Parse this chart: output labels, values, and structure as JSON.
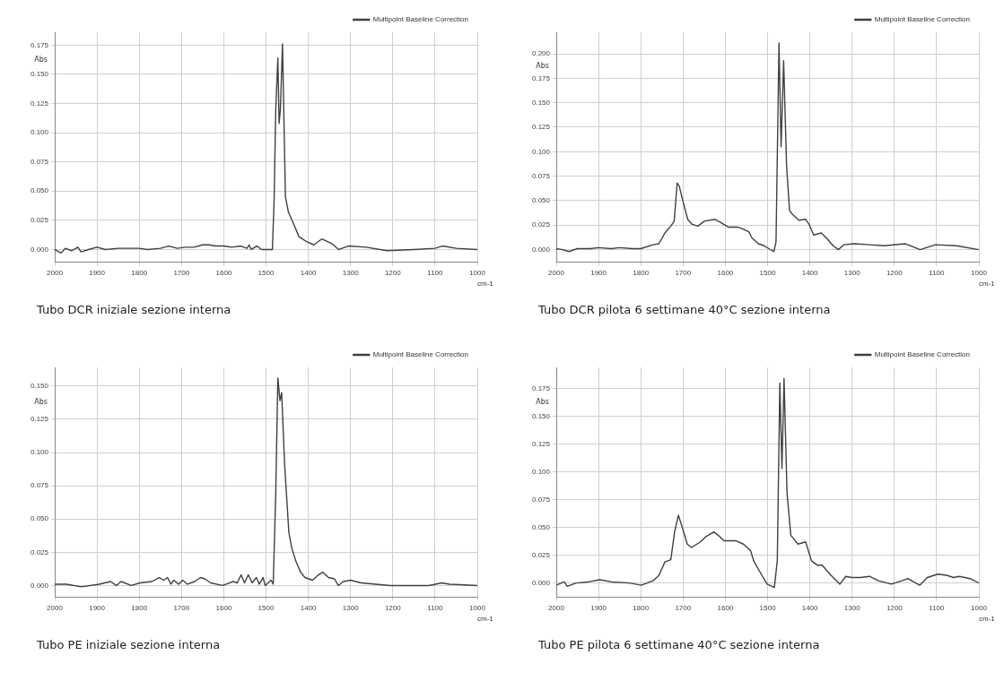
{
  "chart_data": [
    {
      "type": "line",
      "title": "Tubo DCR iniziale sezione interna",
      "xlabel": "cm-1",
      "ylabel": "Abs",
      "grid": true,
      "legend": "top right",
      "marker": "none",
      "line_style": "solid",
      "xlim": [
        2000,
        1000
      ],
      "xticks": [
        2000,
        1900,
        1800,
        1700,
        1600,
        1500,
        1400,
        1300,
        1200,
        1100,
        1000
      ],
      "ylim": [
        -0.011,
        0.186
      ],
      "yticks": [
        {
          "value": 0,
          "label": "0.000"
        },
        {
          "value": 0.025,
          "label": "0.025"
        },
        {
          "value": 0.05,
          "label": "0.050"
        },
        {
          "value": 0.075,
          "label": "0.075"
        },
        {
          "value": 0.1,
          "label": "0.100"
        },
        {
          "value": 0.125,
          "label": "0.125"
        },
        {
          "value": 0.15,
          "label": "0.150"
        },
        {
          "value": 0.175,
          "label": "0.175"
        }
      ],
      "x": [
        2000,
        1985,
        1975,
        1960,
        1945,
        1938,
        1920,
        1900,
        1880,
        1850,
        1800,
        1780,
        1750,
        1730,
        1710,
        1690,
        1670,
        1650,
        1635,
        1620,
        1600,
        1580,
        1560,
        1545,
        1540,
        1535,
        1522,
        1510,
        1500,
        1485,
        1481,
        1477,
        1472,
        1469,
        1466,
        1461,
        1457,
        1454,
        1447,
        1436,
        1422,
        1405,
        1387,
        1368,
        1344,
        1328,
        1305,
        1263,
        1214,
        1150,
        1100,
        1083,
        1050,
        1000
      ],
      "series": [
        {
          "name": "Multipoint Baseline Correction",
          "color": "#404040",
          "values": [
            0.0,
            -0.003,
            0.001,
            -0.001,
            0.002,
            -0.002,
            0.0,
            0.002,
            0.0,
            0.001,
            0.001,
            0.0,
            0.001,
            0.003,
            0.001,
            0.002,
            0.002,
            0.004,
            0.004,
            0.003,
            0.003,
            0.002,
            0.003,
            0.001,
            0.004,
            0.0,
            0.003,
            0.0,
            0.0,
            0.0,
            0.04,
            0.12,
            0.164,
            0.108,
            0.12,
            0.176,
            0.1,
            0.045,
            0.032,
            0.023,
            0.011,
            0.007,
            0.004,
            0.009,
            0.005,
            0.0,
            0.003,
            0.002,
            -0.001,
            0.0,
            0.001,
            0.003,
            0.001,
            0.0
          ]
        }
      ]
    },
    {
      "type": "line",
      "title": "Tubo DCR pilota 6 settimane 40°C sezione interna",
      "xlabel": "cm-1",
      "ylabel": "Abs",
      "grid": true,
      "legend": "top right",
      "marker": "none",
      "line_style": "solid",
      "xlim": [
        2000,
        1000
      ],
      "xticks": [
        2000,
        1900,
        1800,
        1700,
        1600,
        1500,
        1400,
        1300,
        1200,
        1100,
        1000
      ],
      "ylim": [
        -0.013,
        0.222
      ],
      "yticks": [
        {
          "value": 0,
          "label": "0.000"
        },
        {
          "value": 0.025,
          "label": "0.025"
        },
        {
          "value": 0.05,
          "label": "0.050"
        },
        {
          "value": 0.075,
          "label": "0.075"
        },
        {
          "value": 0.1,
          "label": "0.100"
        },
        {
          "value": 0.125,
          "label": "0.125"
        },
        {
          "value": 0.15,
          "label": "0.150"
        },
        {
          "value": 0.175,
          "label": "0.175"
        },
        {
          "value": 0.2,
          "label": "0.200"
        }
      ],
      "x": [
        2000,
        1985,
        1970,
        1950,
        1920,
        1900,
        1870,
        1850,
        1820,
        1800,
        1771,
        1757,
        1743,
        1729,
        1721,
        1714,
        1709,
        1700,
        1689,
        1679,
        1665,
        1650,
        1625,
        1608,
        1593,
        1571,
        1558,
        1544,
        1537,
        1522,
        1508,
        1497,
        1485,
        1480,
        1473,
        1468,
        1462,
        1455,
        1448,
        1441,
        1426,
        1410,
        1402,
        1391,
        1373,
        1359,
        1345,
        1332,
        1320,
        1295,
        1259,
        1224,
        1174,
        1139,
        1103,
        1053,
        1000
      ],
      "series": [
        {
          "name": "Multipoint Baseline Correction",
          "color": "#404040",
          "values": [
            0.001,
            0.0,
            -0.002,
            0.001,
            0.001,
            0.002,
            0.001,
            0.002,
            0.001,
            0.001,
            0.005,
            0.006,
            0.017,
            0.024,
            0.029,
            0.068,
            0.065,
            0.049,
            0.031,
            0.026,
            0.024,
            0.029,
            0.031,
            0.027,
            0.023,
            0.023,
            0.021,
            0.018,
            0.012,
            0.006,
            0.004,
            0.001,
            -0.002,
            0.008,
            0.211,
            0.105,
            0.193,
            0.085,
            0.04,
            0.036,
            0.03,
            0.031,
            0.026,
            0.015,
            0.017,
            0.011,
            0.004,
            0.0,
            0.005,
            0.006,
            0.005,
            0.004,
            0.006,
            0.0,
            0.005,
            0.004,
            0.0
          ]
        }
      ]
    },
    {
      "type": "line",
      "title": "Tubo PE iniziale sezione interna",
      "xlabel": "cm-1",
      "ylabel": "Abs",
      "grid": true,
      "legend": "top right",
      "marker": "none",
      "line_style": "solid",
      "xlim": [
        2000,
        1000
      ],
      "xticks": [
        2000,
        1900,
        1800,
        1700,
        1600,
        1500,
        1400,
        1300,
        1200,
        1100,
        1000
      ],
      "ylim": [
        -0.009,
        0.164
      ],
      "yticks": [
        {
          "value": 0,
          "label": "0.000"
        },
        {
          "value": 0.025,
          "label": "0.025"
        },
        {
          "value": 0.05,
          "label": "0.050"
        },
        {
          "value": 0.075,
          "label": "0.075"
        },
        {
          "value": 0.1,
          "label": "0.100"
        },
        {
          "value": 0.125,
          "label": "0.125"
        },
        {
          "value": 0.15,
          "label": "0.150"
        }
      ],
      "x": [
        2000,
        1972,
        1937,
        1895,
        1868,
        1854,
        1843,
        1819,
        1798,
        1770,
        1753,
        1742,
        1733,
        1725,
        1718,
        1707,
        1697,
        1686,
        1669,
        1655,
        1645,
        1631,
        1603,
        1578,
        1568,
        1559,
        1551,
        1542,
        1533,
        1523,
        1516,
        1507,
        1502,
        1488,
        1483,
        1477,
        1472,
        1467,
        1463,
        1456,
        1446,
        1439,
        1429,
        1418,
        1408,
        1390,
        1376,
        1366,
        1352,
        1338,
        1329,
        1317,
        1300,
        1275,
        1206,
        1115,
        1084,
        1066,
        1000
      ],
      "series": [
        {
          "name": "Multipoint Baseline Correction",
          "color": "#404040",
          "values": [
            0.001,
            0.001,
            -0.001,
            0.001,
            0.003,
            0.0,
            0.003,
            0.0,
            0.002,
            0.003,
            0.006,
            0.004,
            0.006,
            0.001,
            0.004,
            0.001,
            0.004,
            0.001,
            0.003,
            0.006,
            0.005,
            0.002,
            0.0,
            0.003,
            0.002,
            0.008,
            0.002,
            0.008,
            0.002,
            0.006,
            0.001,
            0.006,
            0.0,
            0.004,
            0.001,
            0.069,
            0.156,
            0.139,
            0.145,
            0.091,
            0.04,
            0.028,
            0.018,
            0.01,
            0.006,
            0.004,
            0.008,
            0.01,
            0.006,
            0.005,
            0.0,
            0.003,
            0.004,
            0.002,
            0.0,
            0.0,
            0.002,
            0.001,
            0.0
          ]
        }
      ]
    },
    {
      "type": "line",
      "title": "Tubo PE pilota 6 settimane 40°C sezione interna",
      "xlabel": "cm-1",
      "ylabel": "Abs",
      "grid": true,
      "legend": "top right",
      "marker": "none",
      "line_style": "solid",
      "xlim": [
        2000,
        1000
      ],
      "xticks": [
        2000,
        1900,
        1800,
        1700,
        1600,
        1500,
        1400,
        1300,
        1200,
        1100,
        1000
      ],
      "ylim": [
        -0.013,
        0.194
      ],
      "yticks": [
        {
          "value": 0,
          "label": "0.000"
        },
        {
          "value": 0.025,
          "label": "0.025"
        },
        {
          "value": 0.05,
          "label": "0.050"
        },
        {
          "value": 0.075,
          "label": "0.075"
        },
        {
          "value": 0.1,
          "label": "0.100"
        },
        {
          "value": 0.125,
          "label": "0.125"
        },
        {
          "value": 0.15,
          "label": "0.150"
        },
        {
          "value": 0.175,
          "label": "0.175"
        }
      ],
      "x": [
        2000,
        1988,
        1981,
        1974,
        1953,
        1925,
        1897,
        1869,
        1827,
        1799,
        1771,
        1757,
        1743,
        1729,
        1720,
        1711,
        1701,
        1690,
        1680,
        1659,
        1645,
        1627,
        1617,
        1603,
        1575,
        1557,
        1540,
        1533,
        1512,
        1501,
        1484,
        1477,
        1471,
        1466,
        1461,
        1454,
        1445,
        1428,
        1410,
        1396,
        1382,
        1371,
        1350,
        1329,
        1315,
        1301,
        1280,
        1259,
        1238,
        1207,
        1182,
        1168,
        1140,
        1122,
        1097,
        1076,
        1060,
        1046,
        1021,
        1000
      ],
      "series": [
        {
          "name": "Multipoint Baseline Correction",
          "color": "#404040",
          "values": [
            -0.002,
            0.0,
            0.001,
            -0.003,
            0.0,
            0.001,
            0.003,
            0.001,
            0.0,
            -0.002,
            0.002,
            0.007,
            0.019,
            0.021,
            0.046,
            0.061,
            0.049,
            0.035,
            0.032,
            0.037,
            0.042,
            0.046,
            0.043,
            0.038,
            0.038,
            0.035,
            0.029,
            0.02,
            0.006,
            -0.001,
            -0.004,
            0.02,
            0.18,
            0.103,
            0.184,
            0.081,
            0.043,
            0.035,
            0.037,
            0.02,
            0.016,
            0.016,
            0.007,
            -0.001,
            0.006,
            0.005,
            0.005,
            0.006,
            0.002,
            -0.001,
            0.002,
            0.004,
            -0.002,
            0.005,
            0.008,
            0.007,
            0.005,
            0.006,
            0.004,
            0.0
          ]
        }
      ]
    }
  ]
}
